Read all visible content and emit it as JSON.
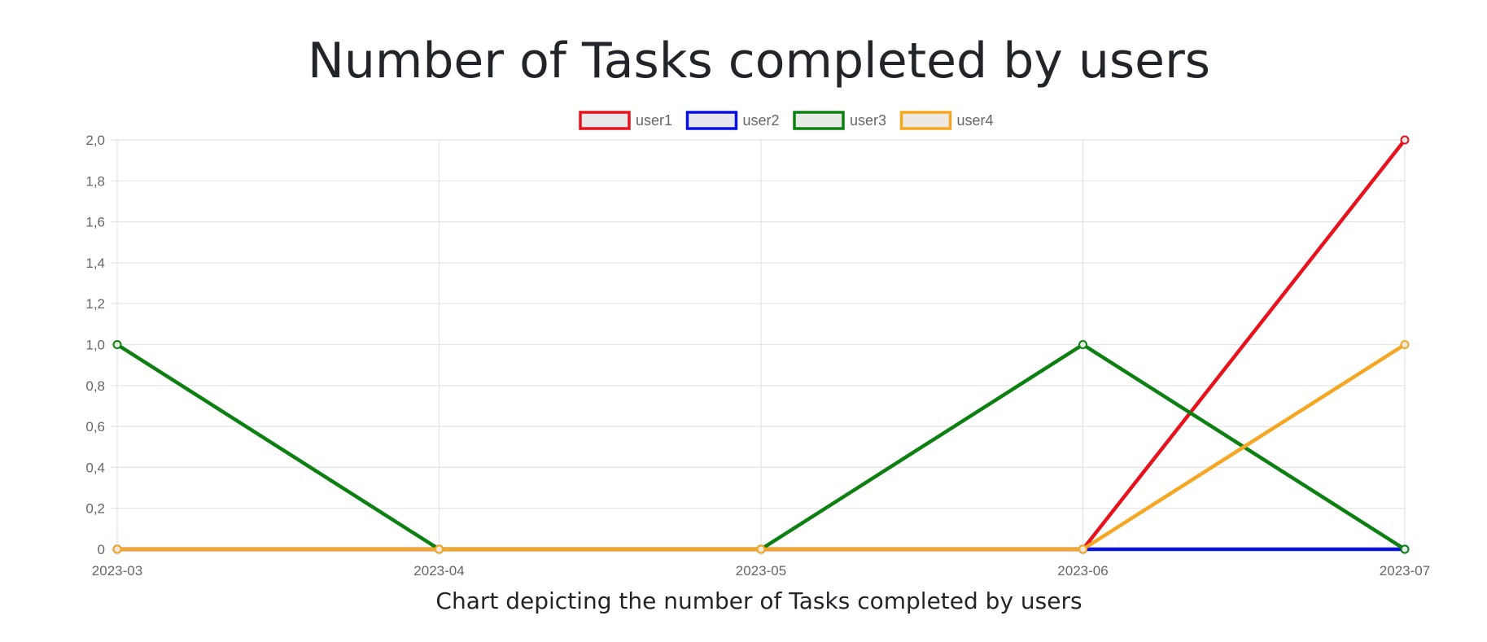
{
  "title": "Number of Tasks completed by users",
  "caption": "Chart depicting the number of Tasks completed by users",
  "chart_data": {
    "type": "line",
    "x": [
      "2023-03",
      "2023-04",
      "2023-05",
      "2023-06",
      "2023-07"
    ],
    "ylim": [
      0,
      2
    ],
    "yticks": [
      "0",
      "0,2",
      "0,4",
      "0,6",
      "0,8",
      "1,0",
      "1,2",
      "1,4",
      "1,6",
      "1,8",
      "2,0"
    ],
    "grid": true,
    "legend_position": "top",
    "series": [
      {
        "name": "user1",
        "color": "#e8121d",
        "fill": "#e8e8e8",
        "values": [
          0,
          0,
          0,
          0,
          2
        ]
      },
      {
        "name": "user2",
        "color": "#0a10e0",
        "fill": "#e6e6ee",
        "values": [
          0,
          0,
          0,
          0,
          0
        ]
      },
      {
        "name": "user3",
        "color": "#0d8012",
        "fill": "#e6ebe6",
        "values": [
          1,
          0,
          0,
          1,
          0
        ]
      },
      {
        "name": "user4",
        "color": "#f5a623",
        "fill": "#eee9e0",
        "values": [
          0,
          0,
          0,
          0,
          1
        ]
      }
    ]
  }
}
